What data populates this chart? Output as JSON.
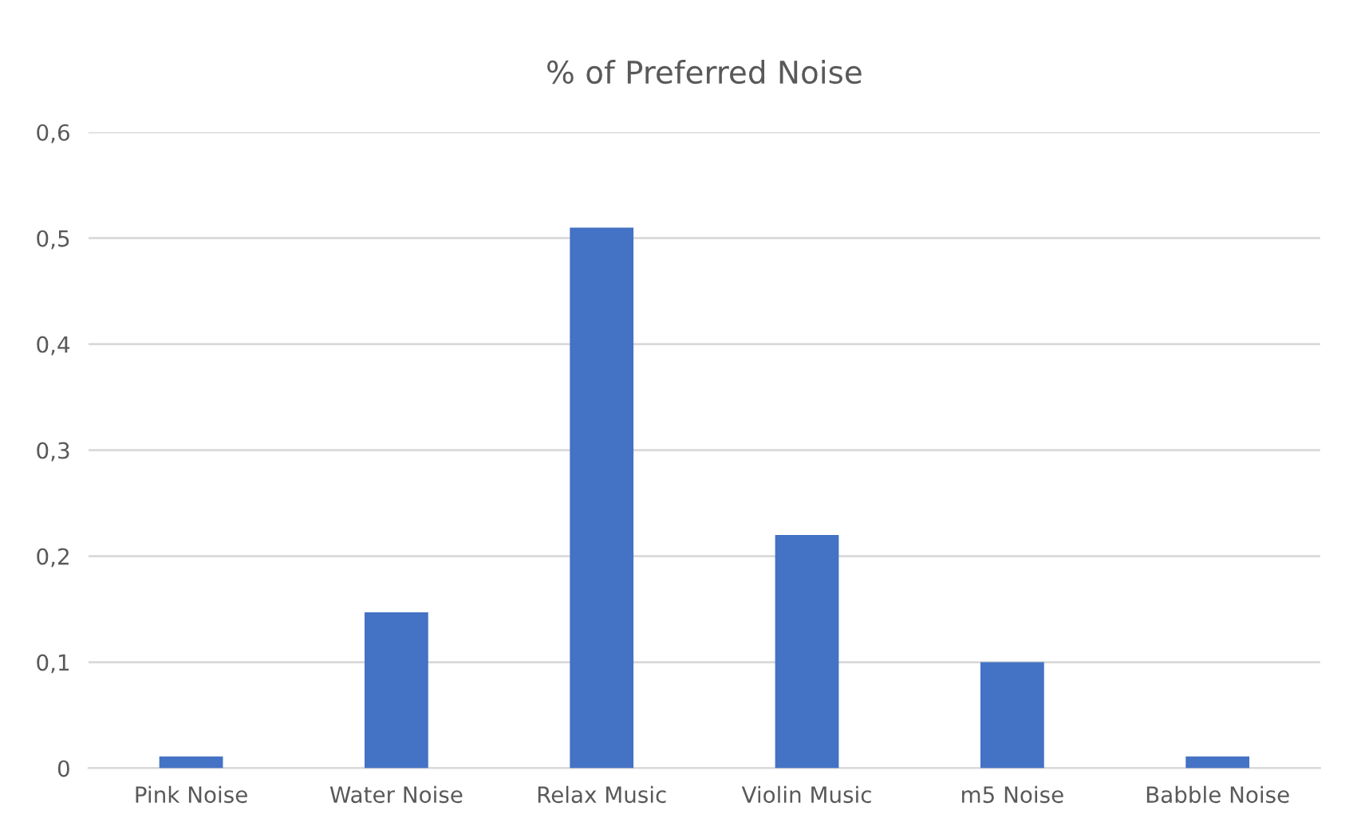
{
  "chart_data": {
    "type": "bar",
    "title": "% of Preferred Noise",
    "categories": [
      "Pink Noise",
      "Water Noise",
      "Relax Music",
      "Violin Music",
      "m5 Noise",
      "Babble Noise"
    ],
    "values": [
      0.011,
      0.147,
      0.51,
      0.22,
      0.1,
      0.011
    ],
    "color": "#4472c4",
    "ylim": [
      0,
      0.6
    ],
    "yticks": [
      0,
      {
        "value": 0.1,
        "label": "0,1"
      },
      {
        "value": 0.2,
        "label": "0,2"
      },
      {
        "value": 0.3,
        "label": "0,3"
      },
      {
        "value": 0.4,
        "label": "0,4"
      },
      {
        "value": 0.5,
        "label": "0,5"
      },
      {
        "value": 0.6,
        "label": "0,6"
      }
    ],
    "grid": "y"
  }
}
